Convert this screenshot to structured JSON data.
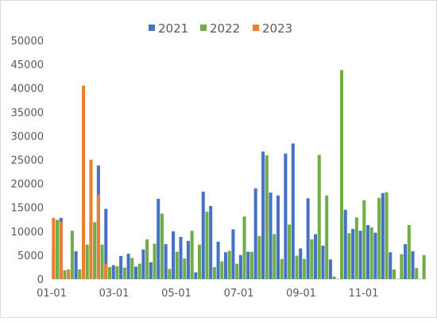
{
  "chart_data": {
    "type": "bar",
    "title": "",
    "xlabel": "",
    "ylabel": "",
    "ylim": [
      0,
      50000
    ],
    "yticks": [
      "0",
      "5000",
      "10000",
      "15000",
      "20000",
      "25000",
      "30000",
      "35000",
      "40000",
      "45000",
      "50000"
    ],
    "xticks": [
      "01-01",
      "03-01",
      "05-01",
      "07-01",
      "09-01",
      "11-01"
    ],
    "grid": false,
    "legend": "top-center",
    "period": "weekly",
    "series": [
      {
        "name": "2021",
        "color": "#4472C4",
        "values": [
          6500,
          12800,
          0,
          5800,
          12400,
          11800,
          23800,
          14700,
          2900,
          4800,
          5300,
          2600,
          6200,
          3500,
          16800,
          7300,
          10000,
          8800,
          8000,
          1400,
          18300,
          15300,
          7800,
          5600,
          10400,
          5000,
          5700,
          19000,
          26700,
          18100,
          17500,
          26300,
          28400,
          6400,
          16900,
          9400,
          7000,
          4100,
          0,
          14500,
          10500,
          10100,
          11300,
          9700,
          18000,
          5600,
          0,
          7300,
          5800
        ]
      },
      {
        "name": "2022",
        "color": "#70AD47",
        "values": [
          12400,
          1800,
          10100,
          2000,
          7200,
          11900,
          7200,
          2500,
          2700,
          2400,
          4400,
          3200,
          8300,
          7400,
          13700,
          2100,
          5700,
          4300,
          10100,
          7200,
          14100,
          2500,
          3700,
          5900,
          3200,
          13100,
          5700,
          9000,
          25900,
          9400,
          4200,
          11400,
          4900,
          4200,
          8300,
          26000,
          17500,
          500,
          43800,
          9600,
          12900,
          16500,
          10800,
          17000,
          18200,
          2000,
          5200,
          11300,
          2300,
          5000
        ]
      },
      {
        "name": "2023",
        "color": "#ED7D31",
        "values": [
          12800,
          12000,
          2000,
          0,
          40500,
          25000,
          17700,
          3200
        ]
      }
    ]
  }
}
